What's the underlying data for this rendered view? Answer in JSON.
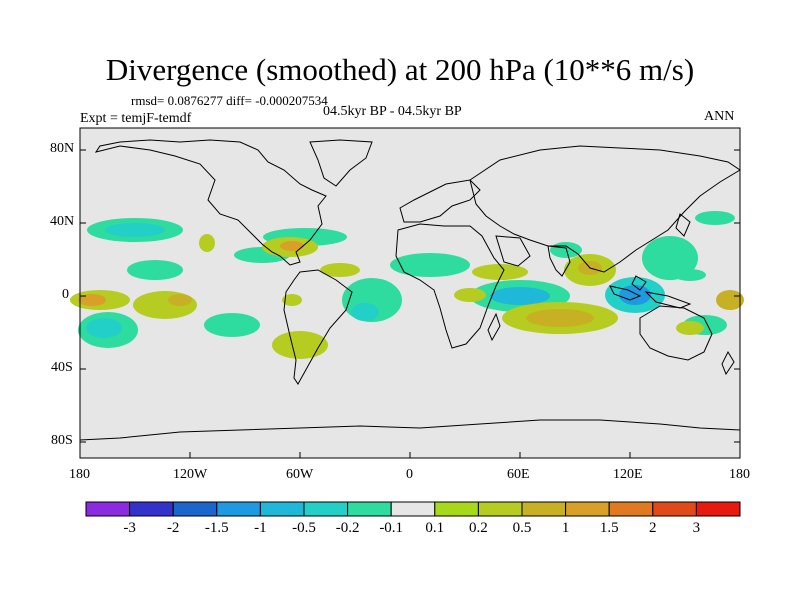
{
  "title": "Divergence (smoothed) at 200 hPa (10**6 m/s)",
  "stats": "rmsd= 0.0876277 diff= -0.000207534",
  "experiment": "Expt = temjF-temdf",
  "period": "04.5kyr BP - 04.5kyr BP",
  "season": "ANN",
  "lat_ticks": [
    "80N",
    "40N",
    "0",
    "40S",
    "80S"
  ],
  "lon_ticks": [
    "180",
    "120W",
    "60W",
    "0",
    "60E",
    "120E",
    "180"
  ],
  "colorbar": {
    "labels": [
      "-3",
      "-2",
      "-1.5",
      "-1",
      "-0.5",
      "-0.2",
      "-0.1",
      "0.1",
      "0.2",
      "0.5",
      "1",
      "1.5",
      "2",
      "3"
    ],
    "colors": [
      "#8a2be2",
      "#3333cc",
      "#1a66cc",
      "#1f9ae0",
      "#20b8d8",
      "#22d0c8",
      "#2edca0",
      "#e6e6e6",
      "#a8d81a",
      "#b6cc20",
      "#c8b024",
      "#d8a028",
      "#e07a20",
      "#e04a18",
      "#e81a10"
    ]
  }
}
